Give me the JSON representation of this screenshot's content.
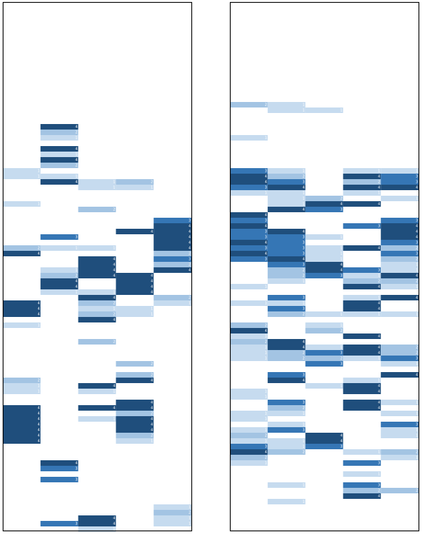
{
  "colors": {
    "1": "#c6dbef",
    "2": "#a3c4e3",
    "3": "#3576b5",
    "4": "#1f4e7c"
  },
  "panels": [
    {
      "cells": [
        [
          30,
          0,
          1
        ],
        [
          31,
          0,
          1
        ],
        [
          36,
          0,
          1
        ],
        [
          44,
          0,
          2
        ],
        [
          45,
          0,
          4
        ],
        [
          54,
          0,
          4
        ],
        [
          55,
          0,
          4
        ],
        [
          56,
          0,
          4
        ],
        [
          58,
          0,
          1
        ],
        [
          68,
          0,
          2
        ],
        [
          69,
          0,
          1
        ],
        [
          70,
          0,
          1
        ],
        [
          73,
          0,
          4
        ],
        [
          74,
          0,
          4
        ],
        [
          75,
          0,
          4
        ],
        [
          76,
          0,
          4
        ],
        [
          77,
          0,
          4
        ],
        [
          78,
          0,
          4
        ],
        [
          79,
          0,
          4
        ],
        [
          22,
          1,
          4
        ],
        [
          23,
          1,
          2
        ],
        [
          24,
          1,
          1
        ],
        [
          26,
          1,
          4
        ],
        [
          27,
          1,
          1
        ],
        [
          28,
          1,
          4
        ],
        [
          29,
          1,
          2
        ],
        [
          31,
          1,
          1
        ],
        [
          32,
          1,
          4
        ],
        [
          42,
          1,
          3
        ],
        [
          44,
          1,
          1
        ],
        [
          48,
          1,
          1
        ],
        [
          49,
          1,
          2
        ],
        [
          50,
          1,
          4
        ],
        [
          51,
          1,
          4
        ],
        [
          52,
          1,
          1
        ],
        [
          83,
          1,
          4
        ],
        [
          84,
          1,
          3
        ],
        [
          86,
          1,
          3
        ],
        [
          94,
          1,
          3
        ],
        [
          32,
          2,
          1
        ],
        [
          33,
          2,
          1
        ],
        [
          37,
          2,
          2
        ],
        [
          44,
          2,
          1
        ],
        [
          46,
          2,
          4
        ],
        [
          47,
          2,
          4
        ],
        [
          48,
          2,
          4
        ],
        [
          49,
          2,
          4
        ],
        [
          52,
          2,
          1
        ],
        [
          53,
          2,
          4
        ],
        [
          54,
          2,
          2
        ],
        [
          55,
          2,
          1
        ],
        [
          56,
          2,
          2
        ],
        [
          57,
          2,
          4
        ],
        [
          61,
          2,
          2
        ],
        [
          69,
          2,
          4
        ],
        [
          70,
          2,
          1
        ],
        [
          73,
          2,
          4
        ],
        [
          75,
          2,
          1
        ],
        [
          93,
          2,
          4
        ],
        [
          94,
          2,
          4
        ],
        [
          95,
          2,
          1
        ],
        [
          32,
          3,
          2
        ],
        [
          33,
          3,
          1
        ],
        [
          41,
          3,
          4
        ],
        [
          49,
          3,
          4
        ],
        [
          50,
          3,
          4
        ],
        [
          51,
          3,
          4
        ],
        [
          52,
          3,
          4
        ],
        [
          55,
          3,
          1
        ],
        [
          56,
          3,
          1
        ],
        [
          65,
          3,
          2
        ],
        [
          67,
          3,
          2
        ],
        [
          68,
          3,
          4
        ],
        [
          72,
          3,
          4
        ],
        [
          73,
          3,
          4
        ],
        [
          74,
          3,
          2
        ],
        [
          75,
          3,
          4
        ],
        [
          76,
          3,
          4
        ],
        [
          77,
          3,
          4
        ],
        [
          78,
          3,
          2
        ],
        [
          79,
          3,
          1
        ],
        [
          39,
          4,
          3
        ],
        [
          40,
          4,
          4
        ],
        [
          41,
          4,
          4
        ],
        [
          42,
          4,
          4
        ],
        [
          43,
          4,
          4
        ],
        [
          44,
          4,
          4
        ],
        [
          45,
          4,
          2
        ],
        [
          46,
          4,
          3
        ],
        [
          47,
          4,
          2
        ],
        [
          48,
          4,
          4
        ],
        [
          53,
          4,
          2
        ],
        [
          54,
          4,
          1
        ],
        [
          91,
          4,
          1
        ],
        [
          92,
          4,
          2
        ],
        [
          93,
          4,
          1
        ],
        [
          94,
          4,
          1
        ]
      ]
    },
    {
      "cells": [
        [
          18,
          0,
          2
        ],
        [
          24,
          0,
          1
        ],
        [
          30,
          0,
          3
        ],
        [
          31,
          0,
          4
        ],
        [
          32,
          0,
          4
        ],
        [
          33,
          0,
          3
        ],
        [
          34,
          0,
          1
        ],
        [
          38,
          0,
          4
        ],
        [
          39,
          0,
          3
        ],
        [
          40,
          0,
          4
        ],
        [
          41,
          0,
          3
        ],
        [
          42,
          0,
          3
        ],
        [
          43,
          0,
          4
        ],
        [
          44,
          0,
          3
        ],
        [
          45,
          0,
          4
        ],
        [
          46,
          0,
          3
        ],
        [
          51,
          0,
          1
        ],
        [
          54,
          0,
          1
        ],
        [
          58,
          0,
          2
        ],
        [
          59,
          0,
          4
        ],
        [
          60,
          0,
          1
        ],
        [
          61,
          0,
          2
        ],
        [
          62,
          0,
          1
        ],
        [
          63,
          0,
          1
        ],
        [
          64,
          0,
          1
        ],
        [
          70,
          0,
          1
        ],
        [
          71,
          0,
          1
        ],
        [
          74,
          0,
          1
        ],
        [
          75,
          0,
          1
        ],
        [
          77,
          0,
          1
        ],
        [
          78,
          0,
          2
        ],
        [
          79,
          0,
          1
        ],
        [
          80,
          0,
          3
        ],
        [
          81,
          0,
          4
        ],
        [
          82,
          0,
          2
        ],
        [
          83,
          0,
          1
        ],
        [
          18,
          1,
          1
        ],
        [
          19,
          1,
          1
        ],
        [
          30,
          1,
          1
        ],
        [
          31,
          1,
          2
        ],
        [
          32,
          1,
          3
        ],
        [
          33,
          1,
          4
        ],
        [
          34,
          1,
          1
        ],
        [
          35,
          1,
          1
        ],
        [
          36,
          1,
          1
        ],
        [
          37,
          1,
          4
        ],
        [
          41,
          1,
          4
        ],
        [
          42,
          1,
          3
        ],
        [
          43,
          1,
          3
        ],
        [
          44,
          1,
          3
        ],
        [
          45,
          1,
          3
        ],
        [
          46,
          1,
          4
        ],
        [
          47,
          1,
          3
        ],
        [
          48,
          1,
          2
        ],
        [
          49,
          1,
          2
        ],
        [
          50,
          1,
          1
        ],
        [
          53,
          1,
          3
        ],
        [
          54,
          1,
          1
        ],
        [
          55,
          1,
          3
        ],
        [
          56,
          1,
          2
        ],
        [
          61,
          1,
          4
        ],
        [
          62,
          1,
          4
        ],
        [
          63,
          1,
          2
        ],
        [
          64,
          1,
          2
        ],
        [
          67,
          1,
          3
        ],
        [
          68,
          1,
          4
        ],
        [
          72,
          1,
          3
        ],
        [
          73,
          1,
          2
        ],
        [
          74,
          1,
          1
        ],
        [
          76,
          1,
          1
        ],
        [
          77,
          1,
          3
        ],
        [
          79,
          1,
          1
        ],
        [
          80,
          1,
          1
        ],
        [
          81,
          1,
          2
        ],
        [
          87,
          1,
          1
        ],
        [
          90,
          1,
          1
        ],
        [
          19,
          2,
          1
        ],
        [
          35,
          2,
          2
        ],
        [
          36,
          2,
          4
        ],
        [
          37,
          2,
          3
        ],
        [
          42,
          2,
          1
        ],
        [
          44,
          2,
          1
        ],
        [
          45,
          2,
          1
        ],
        [
          46,
          2,
          1
        ],
        [
          47,
          2,
          4
        ],
        [
          48,
          2,
          4
        ],
        [
          49,
          2,
          3
        ],
        [
          56,
          2,
          1
        ],
        [
          58,
          2,
          1
        ],
        [
          59,
          2,
          2
        ],
        [
          62,
          2,
          1
        ],
        [
          63,
          2,
          3
        ],
        [
          64,
          2,
          2
        ],
        [
          65,
          2,
          3
        ],
        [
          69,
          2,
          1
        ],
        [
          78,
          2,
          4
        ],
        [
          79,
          2,
          4
        ],
        [
          80,
          2,
          3
        ],
        [
          30,
          3,
          1
        ],
        [
          31,
          3,
          4
        ],
        [
          32,
          3,
          2
        ],
        [
          33,
          3,
          4
        ],
        [
          34,
          3,
          1
        ],
        [
          36,
          3,
          4
        ],
        [
          40,
          3,
          3
        ],
        [
          44,
          3,
          4
        ],
        [
          48,
          3,
          3
        ],
        [
          49,
          3,
          1
        ],
        [
          50,
          3,
          2
        ],
        [
          51,
          3,
          4
        ],
        [
          53,
          3,
          1
        ],
        [
          54,
          3,
          4
        ],
        [
          55,
          3,
          4
        ],
        [
          56,
          3,
          1
        ],
        [
          60,
          3,
          4
        ],
        [
          62,
          3,
          4
        ],
        [
          63,
          3,
          4
        ],
        [
          64,
          3,
          1
        ],
        [
          68,
          3,
          1
        ],
        [
          69,
          3,
          4
        ],
        [
          70,
          3,
          4
        ],
        [
          72,
          3,
          4
        ],
        [
          73,
          3,
          4
        ],
        [
          81,
          3,
          1
        ],
        [
          83,
          3,
          3
        ],
        [
          85,
          3,
          1
        ],
        [
          87,
          3,
          3
        ],
        [
          88,
          3,
          2
        ],
        [
          89,
          3,
          4
        ],
        [
          30,
          4,
          1
        ],
        [
          31,
          4,
          3
        ],
        [
          32,
          4,
          3
        ],
        [
          33,
          4,
          4
        ],
        [
          35,
          4,
          1
        ],
        [
          39,
          4,
          3
        ],
        [
          40,
          4,
          4
        ],
        [
          41,
          4,
          4
        ],
        [
          42,
          4,
          4
        ],
        [
          43,
          4,
          3
        ],
        [
          44,
          4,
          2
        ],
        [
          45,
          4,
          3
        ],
        [
          46,
          4,
          2
        ],
        [
          47,
          4,
          1
        ],
        [
          48,
          4,
          1
        ],
        [
          49,
          4,
          4
        ],
        [
          50,
          4,
          2
        ],
        [
          51,
          4,
          1
        ],
        [
          53,
          4,
          4
        ],
        [
          56,
          4,
          1
        ],
        [
          62,
          4,
          2
        ],
        [
          63,
          4,
          2
        ],
        [
          64,
          4,
          3
        ],
        [
          65,
          4,
          1
        ],
        [
          67,
          4,
          4
        ],
        [
          72,
          4,
          1
        ],
        [
          74,
          4,
          1
        ],
        [
          76,
          4,
          3
        ],
        [
          77,
          4,
          1
        ],
        [
          78,
          4,
          1
        ],
        [
          81,
          4,
          2
        ],
        [
          82,
          4,
          1
        ],
        [
          88,
          4,
          2
        ]
      ]
    }
  ]
}
